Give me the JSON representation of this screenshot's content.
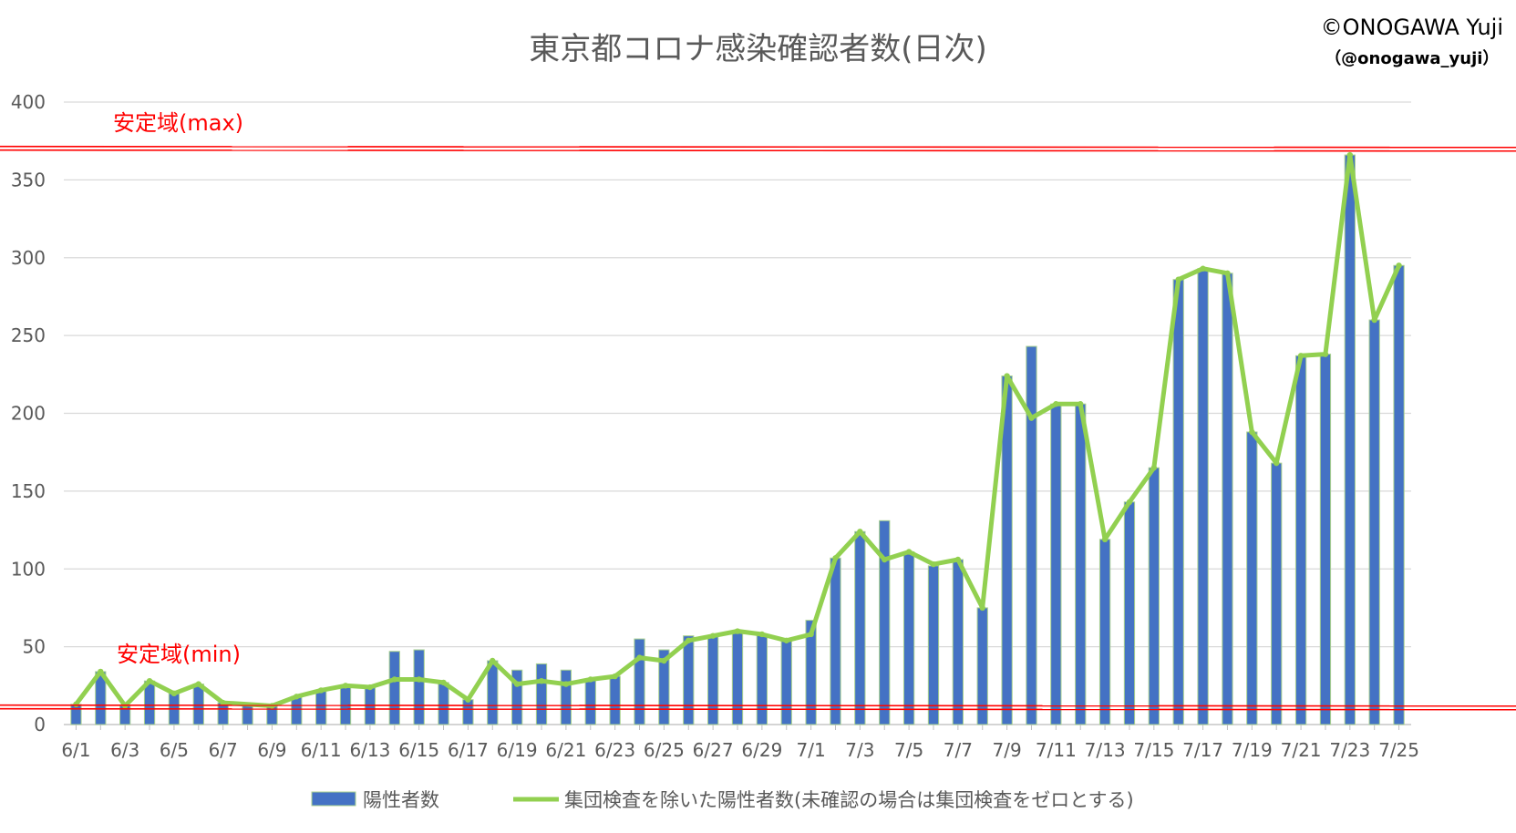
{
  "chart_data": {
    "type": "bar",
    "title": "東京都コロナ感染確認者数(日次)",
    "credit": "©ONOGAWA Yuji",
    "credit_handle": "（@onogawa_yuji）",
    "ylim": [
      0,
      400
    ],
    "y_ticks": [
      "0",
      "50",
      "100",
      "150",
      "200",
      "250",
      "300",
      "350",
      "400"
    ],
    "categories": [
      "6/1",
      "6/2",
      "6/3",
      "6/4",
      "6/5",
      "6/6",
      "6/7",
      "6/8",
      "6/9",
      "6/10",
      "6/11",
      "6/12",
      "6/13",
      "6/14",
      "6/15",
      "6/16",
      "6/17",
      "6/18",
      "6/19",
      "6/20",
      "6/21",
      "6/22",
      "6/23",
      "6/24",
      "6/25",
      "6/26",
      "6/27",
      "6/28",
      "6/29",
      "6/30",
      "7/1",
      "7/2",
      "7/3",
      "7/4",
      "7/5",
      "7/6",
      "7/7",
      "7/8",
      "7/9",
      "7/10",
      "7/11",
      "7/12",
      "7/13",
      "7/14",
      "7/15",
      "7/16",
      "7/17",
      "7/18",
      "7/19",
      "7/20",
      "7/21",
      "7/22",
      "7/23",
      "7/24",
      "7/25"
    ],
    "x_tick_labels": [
      "6/1",
      "6/3",
      "6/5",
      "6/7",
      "6/9",
      "6/11",
      "6/13",
      "6/15",
      "6/17",
      "6/19",
      "6/21",
      "6/23",
      "6/25",
      "6/27",
      "6/29",
      "7/1",
      "7/3",
      "7/5",
      "7/7",
      "7/9",
      "7/11",
      "7/13",
      "7/15",
      "7/17",
      "7/19",
      "7/21",
      "7/23",
      "7/25"
    ],
    "series": [
      {
        "name": "陽性者数",
        "type": "bar",
        "color": "#4472c4",
        "values": [
          13,
          34,
          12,
          28,
          20,
          26,
          14,
          13,
          12,
          18,
          22,
          25,
          24,
          47,
          48,
          27,
          16,
          41,
          35,
          39,
          35,
          29,
          31,
          55,
          48,
          57,
          57,
          60,
          58,
          54,
          67,
          107,
          124,
          131,
          111,
          102,
          106,
          75,
          224,
          243,
          206,
          206,
          119,
          143,
          165,
          286,
          293,
          290,
          188,
          168,
          237,
          238,
          366,
          260,
          295
        ]
      },
      {
        "name": "集団検査を除いた陽性者数(未確認の場合は集団検査をゼロとする)",
        "type": "line",
        "color": "#92d050",
        "values": [
          13,
          34,
          12,
          28,
          20,
          26,
          14,
          null,
          12,
          18,
          22,
          25,
          24,
          29,
          29,
          27,
          16,
          41,
          26,
          28,
          26,
          29,
          31,
          43,
          41,
          54,
          57,
          60,
          58,
          54,
          58,
          107,
          124,
          106,
          111,
          103,
          106,
          75,
          224,
          197,
          206,
          206,
          119,
          143,
          165,
          286,
          293,
          290,
          188,
          168,
          237,
          238,
          366,
          260,
          295
        ]
      }
    ],
    "reference_lines": [
      {
        "label": "安定域(max)",
        "value": 370,
        "color": "#ff0000"
      },
      {
        "label": "安定域(min)",
        "value": 11,
        "color": "#ff0000"
      }
    ],
    "grid": true,
    "legend_position": "bottom"
  }
}
